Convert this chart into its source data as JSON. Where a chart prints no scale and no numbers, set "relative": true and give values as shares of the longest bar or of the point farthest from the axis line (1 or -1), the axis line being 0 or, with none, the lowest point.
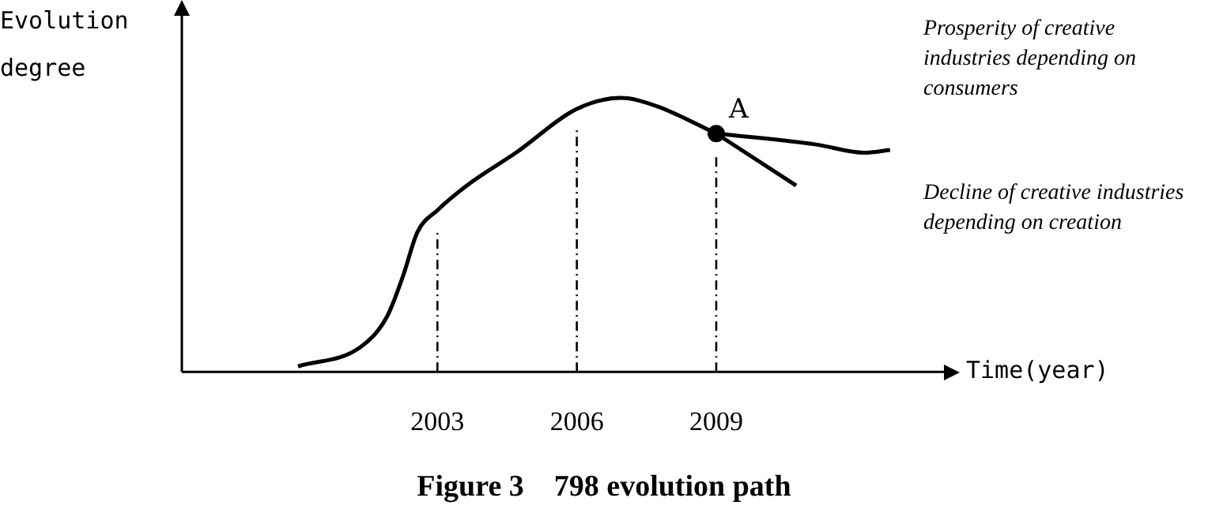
{
  "chart_data": {
    "type": "line",
    "relative": true,
    "title": "Figure 3    798 evolution path",
    "xlabel": "Time(year)",
    "ylabel": "Evolution degree",
    "xlim": [
      1997.5,
      2013.9
    ],
    "xticks": [
      2003,
      2006,
      2009
    ],
    "grid": false,
    "legend": false,
    "marker": "none",
    "line_style": "solid",
    "series": [
      {
        "color": "#000000",
        "x": [
          2000.0,
          2001.34,
          2001.91,
          2002.26,
          2002.57,
          2003,
          2003.71,
          2004.69,
          2006,
          2006.94,
          2007.72,
          2009
        ],
        "values": [
          0.02,
          0.09,
          0.2,
          0.35,
          0.51,
          0.59,
          0.69,
          0.8,
          0.96,
          1,
          0.97,
          0.87
        ]
      },
      {
        "name": "Prosperity of creative industries depending on consumers",
        "color": "#000000",
        "x": [
          2009,
          2011.15,
          2012.18,
          2012.74
        ],
        "values": [
          0.87,
          0.83,
          0.8,
          0.81
        ]
      },
      {
        "name": "Decline of creative industries depending on creation",
        "color": "#000000",
        "x": [
          2009,
          2010.72
        ],
        "values": [
          0.87,
          0.68
        ]
      },
      {
        "type": "scatter",
        "marker": "circle",
        "color": "#000000",
        "x": [
          2009
        ],
        "values": [
          0.87
        ]
      }
    ],
    "ref_lines": [
      {
        "axis": "x",
        "value": 2003,
        "line_style": "dashed"
      },
      {
        "axis": "x",
        "value": 2006,
        "line_style": "dashed"
      },
      {
        "axis": "x",
        "value": 2009,
        "line_style": "dashed"
      }
    ],
    "annotations": [
      {
        "text": "A",
        "x": 2009,
        "y": 0.87
      }
    ]
  }
}
